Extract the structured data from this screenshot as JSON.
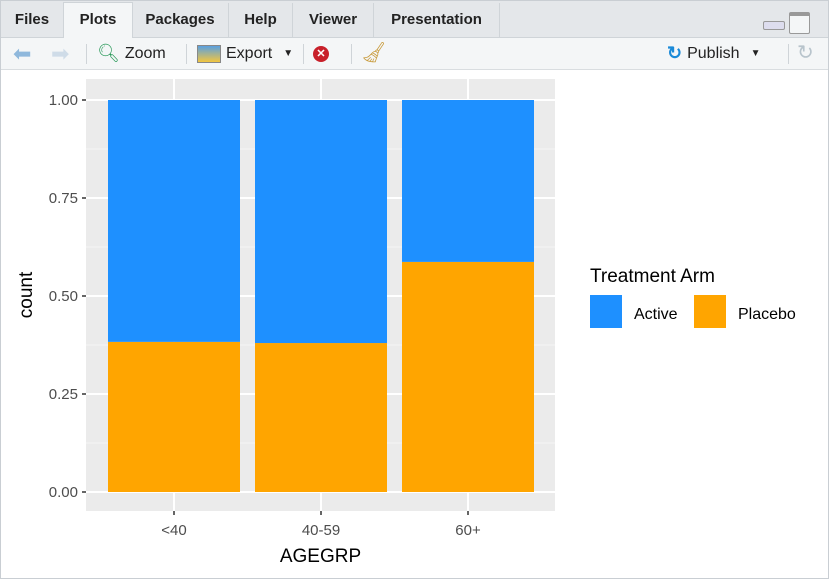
{
  "tabs": [
    {
      "label": "Files"
    },
    {
      "label": "Plots"
    },
    {
      "label": "Packages"
    },
    {
      "label": "Help"
    },
    {
      "label": "Viewer"
    },
    {
      "label": "Presentation"
    }
  ],
  "active_tab": "Plots",
  "toolbar": {
    "zoom_label": "Zoom",
    "export_label": "Export",
    "publish_label": "Publish"
  },
  "chart_data": {
    "type": "bar",
    "stacked": true,
    "xlabel": "AGEGRP",
    "ylabel": "count",
    "categories": [
      "<40",
      "40-59",
      "60+"
    ],
    "yticks": [
      "0.00",
      "0.25",
      "0.50",
      "0.75",
      "1.00"
    ],
    "ylim": [
      0,
      1
    ],
    "grid": true,
    "legend": {
      "title": "Treatment Arm",
      "position": "right"
    },
    "series": [
      {
        "name": "Placebo",
        "color": "#FFA500",
        "values": [
          0.383,
          0.38,
          0.587
        ]
      },
      {
        "name": "Active",
        "color": "#1E90FF",
        "values": [
          0.617,
          0.62,
          0.413
        ]
      }
    ]
  }
}
